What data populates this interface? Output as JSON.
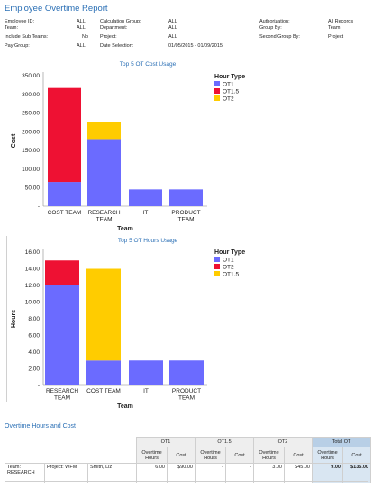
{
  "report_title": "Employee Overtime Report",
  "filters": {
    "employee_id_label": "Employee ID:",
    "employee_id_value": "ALL",
    "team_label": "Team:",
    "team_value": "ALL",
    "include_sub_teams_label": "Include Sub Teams:",
    "include_sub_teams_value": "No",
    "pay_group_label": "Pay Group:",
    "pay_group_value": "ALL",
    "calculation_group_label": "Calculation Group:",
    "calculation_group_value": "ALL",
    "department_label": "Department:",
    "department_value": "ALL",
    "project_label": "Project:",
    "project_value": "ALL",
    "date_selection_label": "Date Selection:",
    "date_selection_value": "01/05/2015 - 01/09/2015",
    "authorization_label": "Authorization:",
    "authorization_value": "All Records",
    "group_by_label": "Group By:",
    "group_by_value": "Team",
    "second_group_by_label": "Second Group By:",
    "second_group_by_value": "Project"
  },
  "chart_data": [
    {
      "type": "bar",
      "stacked": true,
      "title": "Top 5 OT Cost Usage",
      "xlabel": "Team",
      "ylabel": "Cost",
      "ylim": [
        0,
        350
      ],
      "yticks": [
        "350.00",
        "300.00",
        "250.00",
        "200.00",
        "150.00",
        "100.00",
        "50.00",
        "-"
      ],
      "ytick_values": [
        350,
        300,
        250,
        200,
        150,
        100,
        50,
        0
      ],
      "categories": [
        [
          "COST TEAM"
        ],
        [
          "RESEARCH",
          "TEAM"
        ],
        [
          "IT"
        ],
        [
          "PRODUCT",
          "TEAM"
        ]
      ],
      "legend_title": "Hour Type",
      "legend_placement": "right",
      "series": [
        {
          "name": "OT1",
          "color": "#6b6bff",
          "values": [
            65,
            180,
            45,
            45
          ]
        },
        {
          "name": "OT1.5",
          "color": "#ee1133",
          "values": [
            252,
            0,
            0,
            0
          ]
        },
        {
          "name": "OT2",
          "color": "#ffcc00",
          "values": [
            0,
            45,
            0,
            0
          ]
        }
      ]
    },
    {
      "type": "bar",
      "stacked": true,
      "title": "Top 5 OT Hours Usage",
      "xlabel": "Team",
      "ylabel": "Hours",
      "ylim": [
        0,
        16
      ],
      "yticks": [
        "16.00",
        "14.00",
        "12.00",
        "10.00",
        "8.00",
        "6.00",
        "4.00",
        "2.00",
        "-"
      ],
      "ytick_values": [
        16,
        14,
        12,
        10,
        8,
        6,
        4,
        2,
        0
      ],
      "categories": [
        [
          "RESEARCH",
          "TEAM"
        ],
        [
          "COST TEAM"
        ],
        [
          "IT"
        ],
        [
          "PRODUCT",
          "TEAM"
        ]
      ],
      "legend_title": "Hour Type",
      "legend_placement": "right",
      "series": [
        {
          "name": "OT1",
          "color": "#6b6bff",
          "values": [
            12,
            3,
            3,
            3
          ]
        },
        {
          "name": "OT2",
          "color": "#ee1133",
          "values": [
            3,
            0,
            0,
            0
          ]
        },
        {
          "name": "OT1.5",
          "color": "#ffcc00",
          "values": [
            0,
            11,
            0,
            0
          ]
        }
      ]
    }
  ],
  "table": {
    "section_title": "Overtime Hours and Cost",
    "groups": [
      "OT1",
      "OT1.5",
      "OT2",
      "Total OT"
    ],
    "sub_headers": [
      "Overtime Hours",
      "Cost"
    ],
    "rows": [
      {
        "team": "Team: RESEARCH",
        "project": "Project: WFM",
        "employee": "Smith, Liz",
        "ot1_hours": "6.00",
        "ot1_cost": "$90.00",
        "ot15_hours": "-",
        "ot15_cost": "-",
        "ot2_hours": "3.00",
        "ot2_cost": "$45.00",
        "total_hours": "9.00",
        "total_cost": "$135.00"
      }
    ]
  }
}
